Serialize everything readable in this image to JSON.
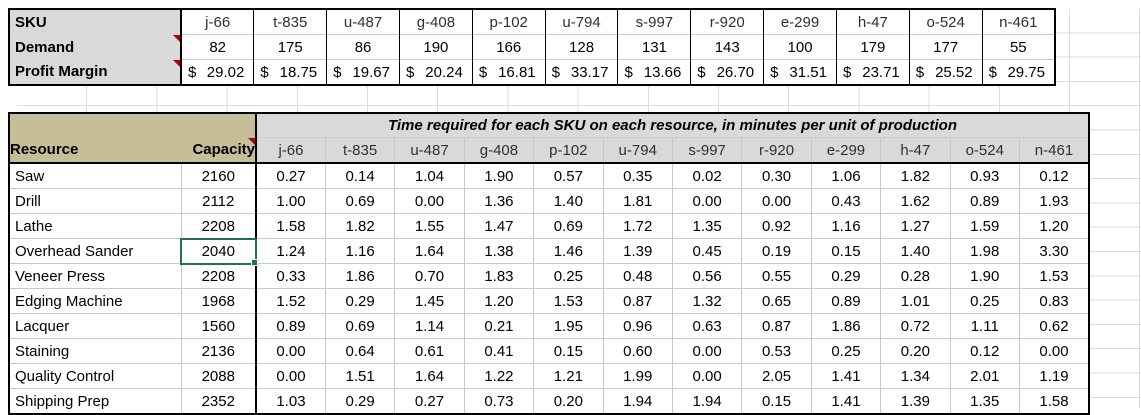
{
  "sku_table": {
    "label_sku": "SKU",
    "label_demand": "Demand",
    "label_profit": "Profit Margin",
    "currency": "$",
    "skus": [
      "j-66",
      "t-835",
      "u-487",
      "g-408",
      "p-102",
      "u-794",
      "s-997",
      "r-920",
      "e-299",
      "h-47",
      "o-524",
      "n-461"
    ],
    "demand": [
      82,
      175,
      86,
      190,
      166,
      128,
      131,
      143,
      100,
      179,
      177,
      55
    ],
    "profit": [
      "29.02",
      "18.75",
      "19.67",
      "20.24",
      "16.81",
      "33.17",
      "13.66",
      "26.70",
      "31.51",
      "23.71",
      "25.52",
      "29.75"
    ],
    "comment_indicators": [
      "Demand",
      "Profit Margin"
    ]
  },
  "resource_table": {
    "title": "Time required for each SKU on each resource, in minutes per unit of production",
    "resource_header": "Resource",
    "capacity_header": "Capacity",
    "skus": [
      "j-66",
      "t-835",
      "u-487",
      "g-408",
      "p-102",
      "u-794",
      "s-997",
      "r-920",
      "e-299",
      "h-47",
      "o-524",
      "n-461"
    ],
    "rows": [
      {
        "resource": "Saw",
        "capacity": 2160,
        "times": [
          "0.27",
          "0.14",
          "1.04",
          "1.90",
          "0.57",
          "0.35",
          "0.02",
          "0.30",
          "1.06",
          "1.82",
          "0.93",
          "0.12"
        ]
      },
      {
        "resource": "Drill",
        "capacity": 2112,
        "times": [
          "1.00",
          "0.69",
          "0.00",
          "1.36",
          "1.40",
          "1.81",
          "0.00",
          "0.00",
          "0.43",
          "1.62",
          "0.89",
          "1.93"
        ]
      },
      {
        "resource": "Lathe",
        "capacity": 2208,
        "times": [
          "1.58",
          "1.82",
          "1.55",
          "1.47",
          "0.69",
          "1.72",
          "1.35",
          "0.92",
          "1.16",
          "1.27",
          "1.59",
          "1.20"
        ]
      },
      {
        "resource": "Overhead Sander",
        "capacity": 2040,
        "times": [
          "1.24",
          "1.16",
          "1.64",
          "1.38",
          "1.46",
          "1.39",
          "0.45",
          "0.19",
          "0.15",
          "1.40",
          "1.98",
          "3.30"
        ]
      },
      {
        "resource": "Veneer Press",
        "capacity": 2208,
        "times": [
          "0.33",
          "1.86",
          "0.70",
          "1.83",
          "0.25",
          "0.48",
          "0.56",
          "0.55",
          "0.29",
          "0.28",
          "1.90",
          "1.53"
        ]
      },
      {
        "resource": "Edging Machine",
        "capacity": 1968,
        "times": [
          "1.52",
          "0.29",
          "1.45",
          "1.20",
          "1.53",
          "0.87",
          "1.32",
          "0.65",
          "0.89",
          "1.01",
          "0.25",
          "0.83"
        ]
      },
      {
        "resource": "Lacquer",
        "capacity": 1560,
        "times": [
          "0.89",
          "0.69",
          "1.14",
          "0.21",
          "1.95",
          "0.96",
          "0.63",
          "0.87",
          "1.86",
          "0.72",
          "1.11",
          "0.62"
        ]
      },
      {
        "resource": "Staining",
        "capacity": 2136,
        "times": [
          "0.00",
          "0.64",
          "0.61",
          "0.41",
          "0.15",
          "0.60",
          "0.00",
          "0.53",
          "0.25",
          "0.20",
          "0.12",
          "0.00"
        ]
      },
      {
        "resource": "Quality Control",
        "capacity": 2088,
        "times": [
          "0.00",
          "1.51",
          "1.64",
          "1.22",
          "1.21",
          "1.99",
          "0.00",
          "2.05",
          "1.41",
          "1.34",
          "2.01",
          "1.19"
        ]
      },
      {
        "resource": "Shipping Prep",
        "capacity": 2352,
        "times": [
          "1.03",
          "0.29",
          "0.27",
          "0.73",
          "0.20",
          "1.94",
          "1.94",
          "0.15",
          "1.41",
          "1.39",
          "1.35",
          "1.58"
        ]
      }
    ],
    "comment_indicators": [
      "Capacity"
    ],
    "selection": {
      "resource": "Overhead Sander",
      "column": "Capacity",
      "value": 2040
    },
    "selection_color": "#217346",
    "comment_color": "#b30000",
    "header_fill": "#d9d9d9",
    "resource_header_fill": "#c5be98"
  }
}
